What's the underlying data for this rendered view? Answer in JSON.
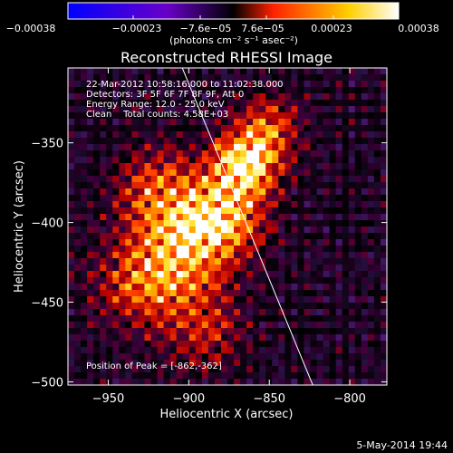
{
  "colorbar": {
    "tick_labels": [
      "-0.00038",
      "-0.00023",
      "-7.6e-05",
      "7.6e-05",
      "0.00023",
      "0.00038"
    ],
    "tick_values": [
      -0.00038,
      -0.00023,
      -7.6e-05,
      7.6e-05,
      0.00023,
      0.00038
    ],
    "range": [
      -0.00038,
      0.00038
    ],
    "units_label": "(photons cm⁻² s⁻¹ asec⁻²)",
    "colors": [
      "#0000ff",
      "#6a00c8",
      "#000000",
      "#ff2000",
      "#ffd000",
      "#ffffff"
    ]
  },
  "title": "Reconstructed RHESSI Image",
  "annotations": {
    "time_range": "22-Mar-2012 10:58:16.000 to 11:02:38.000",
    "detectors": "Detectors: 3F 5F 6F 7F 8F 9F, Att 0",
    "energy_range": "Energy Range: 12.0 - 25.0 keV",
    "clean_counts": "Clean    Total counts: 4.58E+03",
    "peak_position": "Position of Peak = [-862,-362]"
  },
  "footer_date": "5-May-2014 19:44",
  "chart_data": {
    "type": "heatmap",
    "title": "Reconstructed RHESSI Image",
    "xlabel": "Heliocentric X (arcsec)",
    "ylabel": "Heliocentric Y (arcsec)",
    "xlim": [
      -975,
      -777
    ],
    "ylim": [
      -502,
      -303
    ],
    "x_ticks": [
      -950,
      -900,
      -850,
      -800
    ],
    "y_ticks": [
      -500,
      -450,
      -400,
      -350
    ],
    "x_tick_labels": [
      "-950",
      "-900",
      "-850",
      "-800"
    ],
    "y_tick_labels": [
      "-500",
      "-450",
      "-400",
      "-350"
    ],
    "peak": [
      -862,
      -362
    ],
    "limb_line": [
      [
        -904,
        -303
      ],
      [
        -823,
        -502
      ]
    ],
    "emission_blobs": [
      {
        "x": -865,
        "y": -362,
        "amplitude": 1.0,
        "sigma": 14
      },
      {
        "x": -880,
        "y": -395,
        "amplitude": 0.85,
        "sigma": 18
      },
      {
        "x": -905,
        "y": -420,
        "amplitude": 0.7,
        "sigma": 22
      },
      {
        "x": -920,
        "y": -380,
        "amplitude": 0.55,
        "sigma": 18
      },
      {
        "x": -850,
        "y": -340,
        "amplitude": 0.5,
        "sigma": 14
      },
      {
        "x": -930,
        "y": -440,
        "amplitude": 0.45,
        "sigma": 20
      },
      {
        "x": -890,
        "y": -470,
        "amplitude": 0.4,
        "sigma": 16
      }
    ],
    "grid": false
  }
}
